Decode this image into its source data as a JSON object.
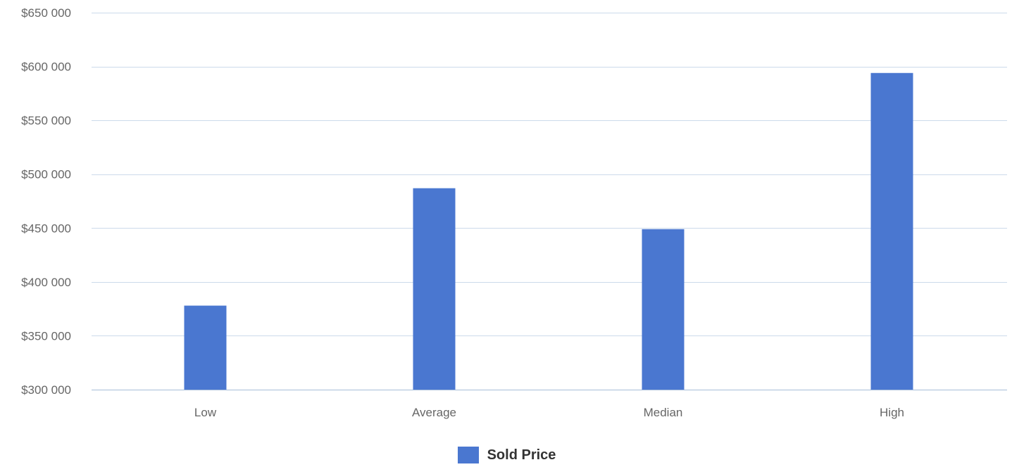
{
  "chart_data": {
    "type": "bar",
    "categories": [
      "Low",
      "Average",
      "Median",
      "High"
    ],
    "series": [
      {
        "name": "Sold Price",
        "values": [
          378000,
          487000,
          449000,
          594000
        ]
      }
    ],
    "ylim": [
      300000,
      650000
    ],
    "yticks": [
      300000,
      350000,
      400000,
      450000,
      500000,
      550000,
      600000,
      650000
    ],
    "ytick_labels": [
      "$300 000",
      "$350 000",
      "$400 000",
      "$450 000",
      "$500 000",
      "$550 000",
      "$600 000",
      "$650 000"
    ],
    "grid": true,
    "legend_position": "bottom-center",
    "colors": {
      "bar": "#4a77d0",
      "grid": "#ccdaeb",
      "axis": "#a7bdd9",
      "tick_text": "#666666"
    }
  }
}
